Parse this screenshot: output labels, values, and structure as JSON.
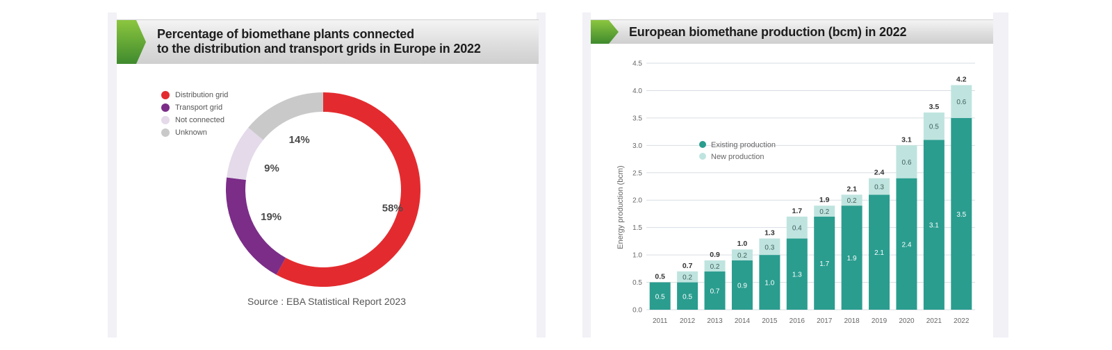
{
  "left": {
    "title_line1": "Percentage of biomethane plants connected",
    "title_line2": "to the distribution and transport grids in Europe in 2022",
    "source": "Source : EBA Statistical Report 2023",
    "legend": [
      {
        "label": "Distribution grid",
        "color": "#e32b2f"
      },
      {
        "label": "Transport grid",
        "color": "#7b2d88"
      },
      {
        "label": "Not connected",
        "color": "#e4daea"
      },
      {
        "label": "Unknown",
        "color": "#c9c9c9"
      }
    ]
  },
  "right": {
    "title": "European biomethane production (bcm) in 2022",
    "legend": [
      {
        "label": "Existing production",
        "color": "#2a9d8f"
      },
      {
        "label": "New production",
        "color": "#bfe4df"
      }
    ]
  },
  "chart_data": [
    {
      "type": "pie",
      "categories": [
        "Distribution grid",
        "Transport grid",
        "Not connected",
        "Unknown"
      ],
      "values": [
        58,
        19,
        9,
        14
      ],
      "labels": [
        "58%",
        "19%",
        "9%",
        "14%"
      ],
      "colors": [
        "#e32b2f",
        "#7b2d88",
        "#e4daea",
        "#c9c9c9"
      ],
      "title": "Percentage of biomethane plants connected to the distribution and transport grids in Europe in 2022",
      "legend_position": "top-left"
    },
    {
      "type": "bar",
      "stacked": true,
      "title": "European biomethane production (bcm) in 2022",
      "categories": [
        "2011",
        "2012",
        "2013",
        "2014",
        "2015",
        "2016",
        "2017",
        "2018",
        "2019",
        "2020",
        "2021",
        "2022"
      ],
      "series": [
        {
          "name": "Existing production",
          "values": [
            0.5,
            0.5,
            0.7,
            0.9,
            1.0,
            1.3,
            1.7,
            1.9,
            2.1,
            2.4,
            3.1,
            3.5
          ],
          "labels": [
            "0.5",
            "0.5",
            "0.7",
            "0.9",
            "1.0",
            "1.3",
            "1.7",
            "1.9",
            "2.1",
            "2.4",
            "3.1",
            "3.5"
          ],
          "color": "#2a9d8f"
        },
        {
          "name": "New production",
          "values": [
            0,
            0.2,
            0.2,
            0.2,
            0.3,
            0.4,
            0.2,
            0.2,
            0.3,
            0.6,
            0.5,
            0.6
          ],
          "labels": [
            "",
            "0.2",
            "0.2",
            "0.2",
            "0.3",
            "0.4",
            "0.2",
            "0.2",
            "0.3",
            "0.6",
            "0.5",
            "0.6"
          ],
          "color": "#bfe4df"
        }
      ],
      "totals": [
        "0.5",
        "0.7",
        "0.9",
        "1.0",
        "1.3",
        "1.7",
        "1.9",
        "2.1",
        "2.4",
        "3.1",
        "3.5",
        "4.2"
      ],
      "ylabel": "Energy production (bcm)",
      "xlabel": "",
      "ylim": [
        0,
        4.5
      ],
      "yticks": [
        "0.0",
        "0.5",
        "1.0",
        "1.5",
        "2.0",
        "2.5",
        "3.0",
        "3.5",
        "4.0",
        "4.5"
      ],
      "grid": true,
      "legend_position": "upper-left"
    }
  ]
}
